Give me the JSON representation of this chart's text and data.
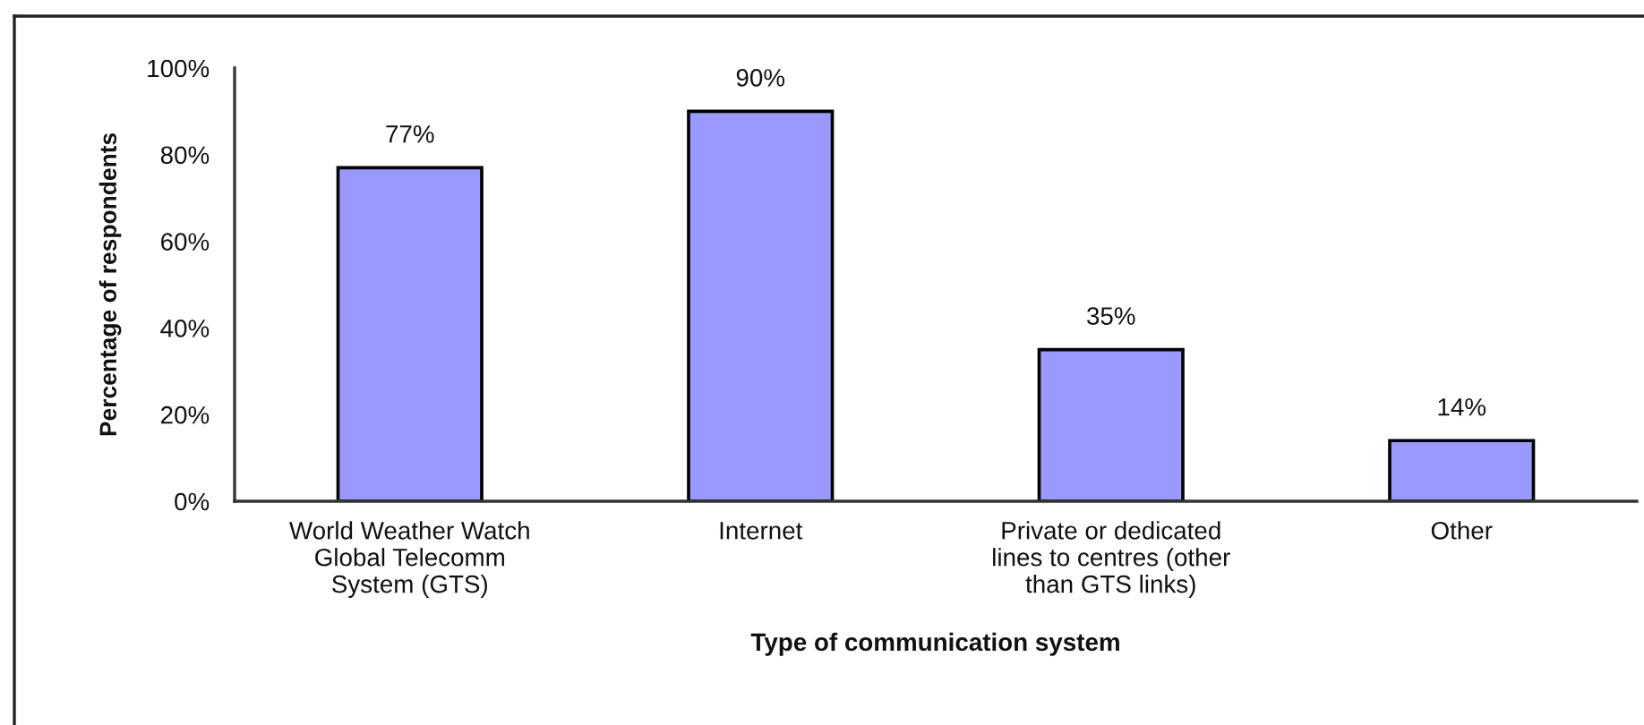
{
  "chart_data": {
    "type": "bar",
    "xlabel": "Type of communication system",
    "ylabel": "Percentage of respondents",
    "categories": [
      "World Weather Watch\nGlobal Telecomm\nSystem (GTS)",
      "Internet",
      "Private or dedicated\nlines to centres (other\nthan GTS links)",
      "Other"
    ],
    "values": [
      77,
      90,
      35,
      14
    ],
    "value_labels": [
      "77%",
      "90%",
      "35%",
      "14%"
    ],
    "color": "#9999ff",
    "ylim": [
      0,
      100
    ],
    "yticks": [
      {
        "value": 0,
        "label": "0%"
      },
      {
        "value": 20,
        "label": "20%"
      },
      {
        "value": 40,
        "label": "40%"
      },
      {
        "value": 60,
        "label": "60%"
      },
      {
        "value": 80,
        "label": "80%"
      },
      {
        "value": 100,
        "label": "100%"
      }
    ],
    "grid": false,
    "legend": false
  }
}
